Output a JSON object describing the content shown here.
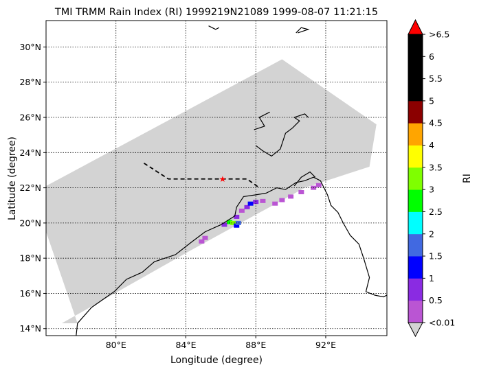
{
  "chart_data": {
    "type": "heatmap",
    "title": "TMI TRMM Rain Index (RI) 1999219N21089 1999-08-07 11:21:15",
    "xlabel": "Longitude (degree)",
    "ylabel": "Latitude (degree)",
    "xlim": [
      76.0,
      95.5
    ],
    "ylim": [
      13.6,
      31.5
    ],
    "xticks": [
      80,
      84,
      88,
      92
    ],
    "xtick_labels": [
      "80°E",
      "84°E",
      "88°E",
      "92°E"
    ],
    "yticks": [
      14,
      16,
      18,
      20,
      22,
      24,
      26,
      28,
      30
    ],
    "ytick_labels": [
      "14°N",
      "16°N",
      "18°N",
      "20°N",
      "22°N",
      "24°N",
      "26°N",
      "28°N",
      "30°N"
    ],
    "grid": true,
    "swath_color": "#d3d3d3",
    "track_marker": {
      "lon": 86.1,
      "lat": 22.5,
      "color": "#ff0000"
    },
    "track_line": [
      [
        81.6,
        23.4
      ],
      [
        83.0,
        22.5
      ],
      [
        86.1,
        22.5
      ],
      [
        87.5,
        22.5
      ],
      [
        88.2,
        22.0
      ]
    ],
    "rain_cells": [
      {
        "lon": 84.9,
        "lat": 18.95,
        "ri": 0.3
      },
      {
        "lon": 85.1,
        "lat": 19.15,
        "ri": 0.3
      },
      {
        "lon": 86.2,
        "lat": 19.9,
        "ri": 0.7
      },
      {
        "lon": 86.5,
        "lat": 20.05,
        "ri": 2.8
      },
      {
        "lon": 86.7,
        "lat": 20.0,
        "ri": 3.2
      },
      {
        "lon": 86.9,
        "lat": 19.85,
        "ri": 1.2
      },
      {
        "lon": 87.0,
        "lat": 20.0,
        "ri": 1.7
      },
      {
        "lon": 86.9,
        "lat": 20.35,
        "ri": 0.6
      },
      {
        "lon": 87.2,
        "lat": 20.7,
        "ri": 0.4
      },
      {
        "lon": 87.5,
        "lat": 20.9,
        "ri": 0.8
      },
      {
        "lon": 87.7,
        "lat": 21.1,
        "ri": 1.3
      },
      {
        "lon": 88.0,
        "lat": 21.2,
        "ri": 0.6
      },
      {
        "lon": 88.4,
        "lat": 21.25,
        "ri": 0.3
      },
      {
        "lon": 89.1,
        "lat": 21.1,
        "ri": 0.4
      },
      {
        "lon": 89.5,
        "lat": 21.3,
        "ri": 0.2
      },
      {
        "lon": 90.0,
        "lat": 21.5,
        "ri": 0.3
      },
      {
        "lon": 90.6,
        "lat": 21.75,
        "ri": 0.2
      },
      {
        "lon": 91.3,
        "lat": 22.0,
        "ri": 0.4
      },
      {
        "lon": 91.6,
        "lat": 22.15,
        "ri": 0.3
      }
    ],
    "colorbar": {
      "label": "RI",
      "tick_labels": [
        "<0.01",
        "0.5",
        "1",
        "1.5",
        "2",
        "2.5",
        "3",
        "3.5",
        "4",
        "4.5",
        "5",
        "5.5",
        "6",
        ">6.5"
      ],
      "colors": [
        "#ba55d3",
        "#8a2be2",
        "#0000ff",
        "#4169e1",
        "#00ffff",
        "#00ff00",
        "#7fff00",
        "#ffff00",
        "#ffa500",
        "#8b0000",
        "#000000",
        "#000000",
        "#000000"
      ],
      "under_color": "#d3d3d3",
      "over_color": "#ff0000"
    }
  }
}
